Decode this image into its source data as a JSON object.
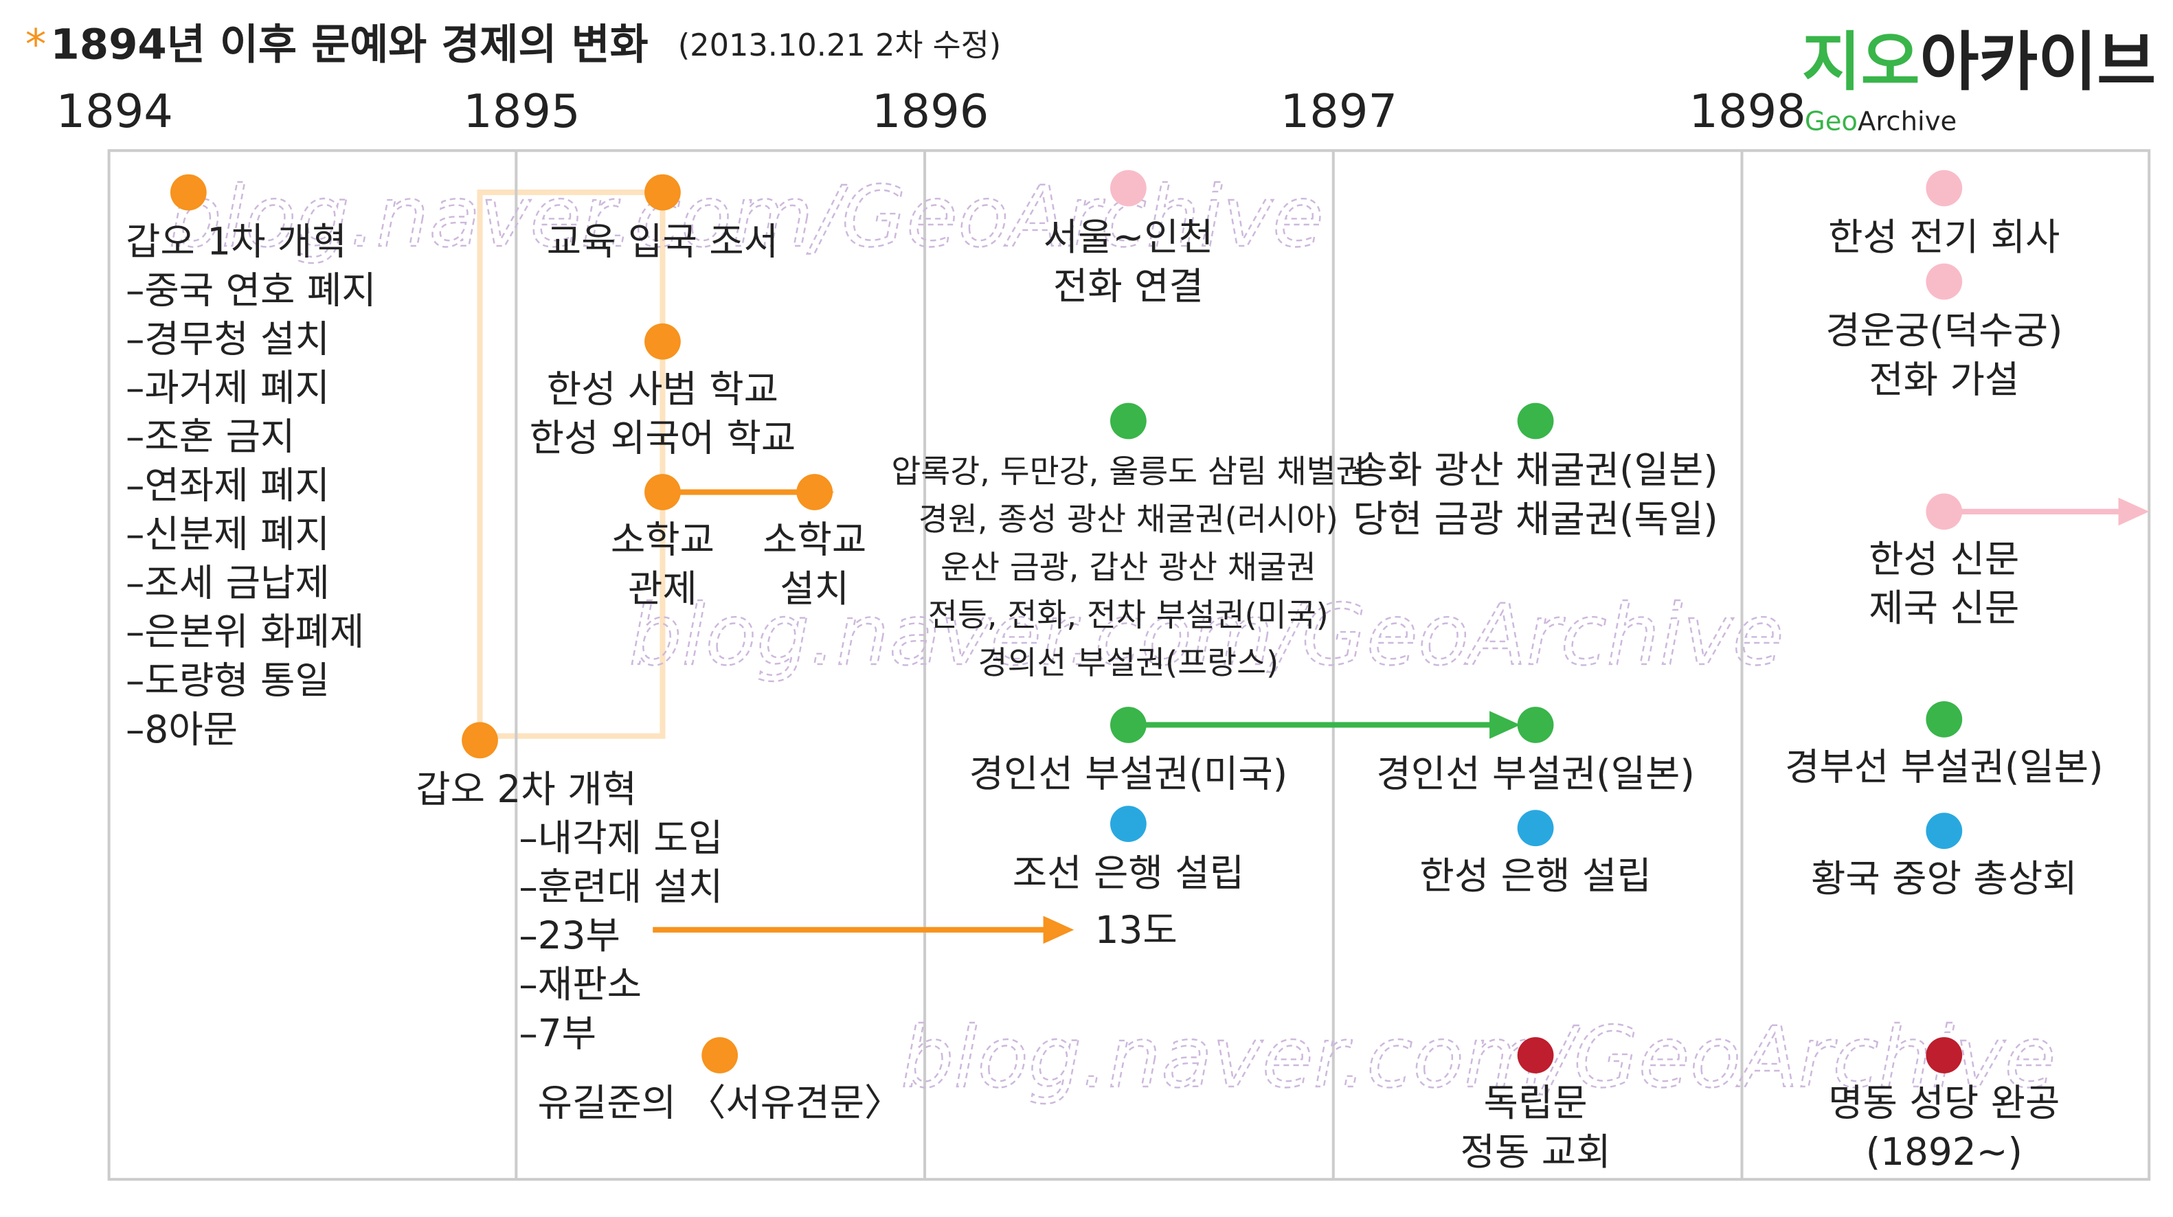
{
  "header": {
    "star": "*",
    "title": "1894년 이후 문예와 경제의 변화",
    "subtitle": "(2013.10.21 2차 수정)"
  },
  "logo": {
    "ko_green": "지오",
    "ko_black": "아카이브",
    "en_green": "Geo",
    "en_black": "Archive"
  },
  "watermark": "blog.naver.com/GeoArchive",
  "years": [
    "1894",
    "1895",
    "1896",
    "1897",
    "1898"
  ],
  "events": [
    {
      "color": "#f7931e",
      "lines": [
        "갑오 1차 개혁",
        "–중국 연호 폐지",
        "–경무청 설치",
        "–과거제 폐지",
        "–조혼 금지",
        "–연좌제 폐지",
        "–신분제 폐지",
        "–조세 금납제",
        "–은본위 화폐제",
        "–도량형 통일",
        "–8아문"
      ]
    },
    {
      "color": "#f7931e",
      "lines": [
        "교육 입국 조서"
      ]
    },
    {
      "color": "#f7931e",
      "lines": [
        "한성 사범 학교",
        "한성 외국어 학교"
      ]
    },
    {
      "color": "#f7931e",
      "lines": [
        "소학교",
        "관제"
      ]
    },
    {
      "color": "#f7931e",
      "lines": [
        "소학교",
        "설치"
      ]
    },
    {
      "color": "#f7931e",
      "lines": [
        "갑오 2차 개혁",
        "–내각제 도입",
        "–훈련대 설치",
        "–23부",
        "–재판소",
        "–7부"
      ],
      "note": "13도"
    },
    {
      "color": "#f7931e",
      "lines": [
        "유길준의 〈서유견문〉"
      ]
    },
    {
      "color": "#f8bcc8",
      "lines": [
        "서울~인천",
        "전화 연결"
      ]
    },
    {
      "color": "#39b54a",
      "lines": [
        "압록강, 두만강, 울릉도 삼림 채벌권",
        "경원, 종성 광산 채굴권(러시아)",
        "운산 금광, 갑산 광산 채굴권",
        "전등, 전화, 전차 부설권(미국)",
        "경의선 부설권(프랑스)"
      ]
    },
    {
      "color": "#39b54a",
      "lines": [
        "송화 광산 채굴권(일본)",
        "당현 금광 채굴권(독일)"
      ]
    },
    {
      "color": "#39b54a",
      "lines": [
        "경인선 부설권(미국)"
      ]
    },
    {
      "color": "#39b54a",
      "lines": [
        "경인선 부설권(일본)"
      ]
    },
    {
      "color": "#29a8e0",
      "lines": [
        "조선 은행 설립"
      ]
    },
    {
      "color": "#29a8e0",
      "lines": [
        "한성 은행 설립"
      ]
    },
    {
      "color": "#be1e2d",
      "lines": [
        "독립문",
        "정동 교회"
      ]
    },
    {
      "color": "#f8bcc8",
      "lines": [
        "한성 전기 회사"
      ]
    },
    {
      "color": "#f8bcc8",
      "lines": [
        "경운궁(덕수궁)",
        "전화 가설"
      ]
    },
    {
      "color": "#f8bcc8",
      "lines": [
        "한성 신문",
        "제국 신문"
      ]
    },
    {
      "color": "#39b54a",
      "lines": [
        "경부선 부설권(일본)"
      ]
    },
    {
      "color": "#29a8e0",
      "lines": [
        "황국 중앙 총상회"
      ]
    },
    {
      "color": "#be1e2d",
      "lines": [
        "명동 성당 완공",
        "(1892~)"
      ]
    }
  ]
}
